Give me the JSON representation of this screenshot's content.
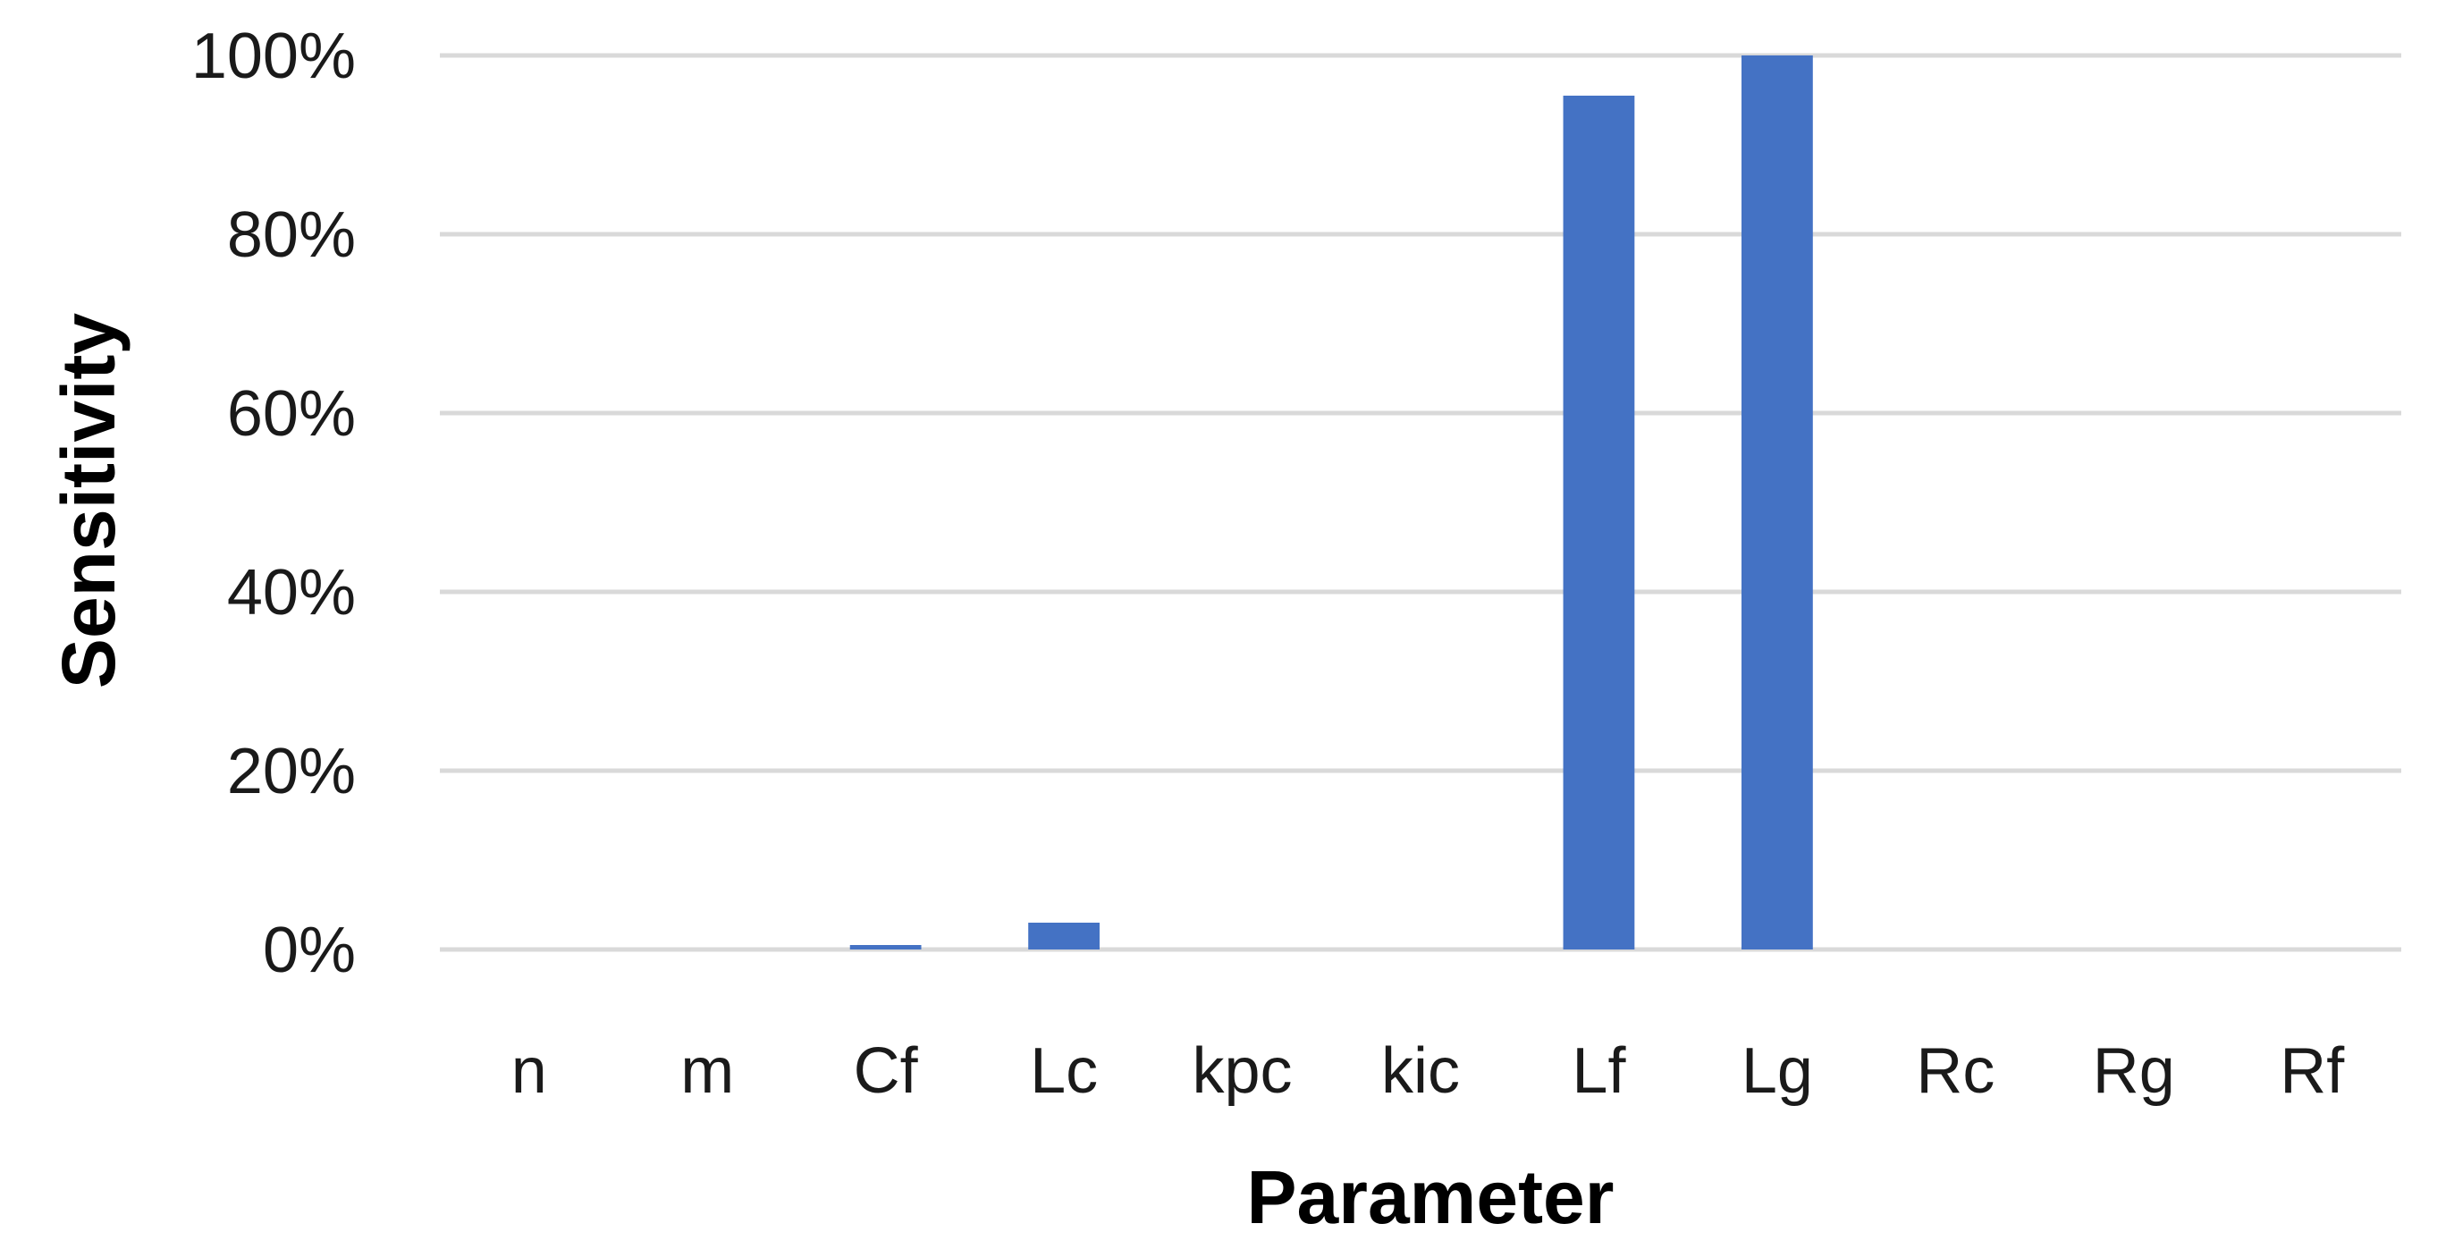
{
  "chart_data": {
    "type": "bar",
    "title": "",
    "xlabel": "Parameter",
    "ylabel": "Sensitivity",
    "categories": [
      "n",
      "m",
      "Cf",
      "Lc",
      "kpc",
      "kic",
      "Lf",
      "Lg",
      "Rc",
      "Rg",
      "Rf"
    ],
    "values": [
      0,
      0,
      0.5,
      3,
      0,
      0,
      95.5,
      100,
      0,
      0,
      0
    ],
    "ylim": [
      0,
      100
    ],
    "yticks": [
      0,
      20,
      40,
      60,
      80,
      100
    ],
    "ytick_labels": [
      "0%",
      "20%",
      "40%",
      "60%",
      "80%",
      "100%"
    ],
    "y_unit": "%",
    "grid": true,
    "legend": "none",
    "bar_color": "#4472C4",
    "gridline_color": "#D9D9D9"
  }
}
